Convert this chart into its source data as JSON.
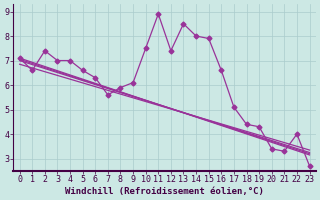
{
  "xlabel": "Windchill (Refroidissement éolien,°C)",
  "background_color": "#cce8e4",
  "line_color": "#993399",
  "grid_color": "#aacccc",
  "xlim": [
    -0.5,
    23.5
  ],
  "ylim": [
    2.5,
    9.3
  ],
  "yticks": [
    3,
    4,
    5,
    6,
    7,
    8,
    9
  ],
  "xticks": [
    0,
    1,
    2,
    3,
    4,
    5,
    6,
    7,
    8,
    9,
    10,
    11,
    12,
    13,
    14,
    15,
    16,
    17,
    18,
    19,
    20,
    21,
    22,
    23
  ],
  "series1_x": [
    0,
    1,
    2,
    3,
    4,
    5,
    6,
    7,
    8,
    9,
    10,
    11,
    12,
    13,
    14,
    15,
    16,
    17,
    18,
    19,
    20,
    21,
    22,
    23
  ],
  "series1_y": [
    7.1,
    6.6,
    7.4,
    7.0,
    7.0,
    6.6,
    6.3,
    5.6,
    5.9,
    6.1,
    7.5,
    8.9,
    7.4,
    8.5,
    8.0,
    7.9,
    6.6,
    5.1,
    4.4,
    4.3,
    3.4,
    3.3,
    4.0,
    2.7
  ],
  "trend_lines": [
    {
      "x": [
        0,
        23
      ],
      "y": [
        7.1,
        3.15
      ]
    },
    {
      "x": [
        0,
        23
      ],
      "y": [
        7.0,
        3.25
      ]
    },
    {
      "x": [
        0,
        23
      ],
      "y": [
        7.05,
        3.2
      ]
    },
    {
      "x": [
        0,
        23
      ],
      "y": [
        6.85,
        3.35
      ]
    }
  ],
  "marker": "D",
  "markersize": 2.5,
  "linewidth": 0.9,
  "tick_fontsize": 6.0,
  "xlabel_fontsize": 6.5
}
